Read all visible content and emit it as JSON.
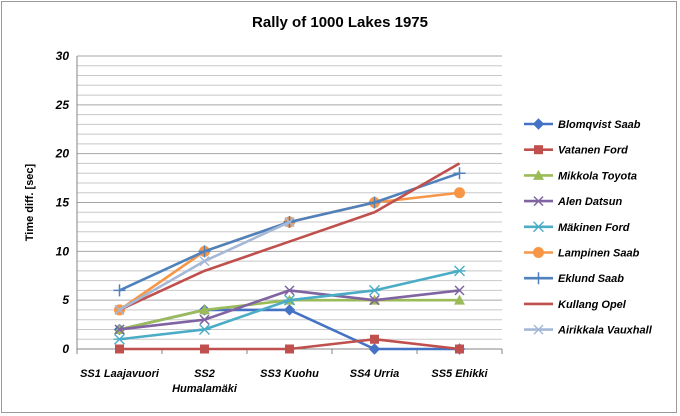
{
  "chart_data": {
    "type": "line",
    "title": "Rally of 1000 Lakes 1975",
    "xlabel": "",
    "ylabel": "Time diff. [sec]",
    "categories": [
      "SS1 Laajavuori",
      "SS2 Humalamäki",
      "SS3 Kuohu",
      "SS4 Urria",
      "SS5 Ehikki"
    ],
    "category_lines": [
      [
        "SS1 Laajavuori"
      ],
      [
        "SS2",
        "Humalamäki"
      ],
      [
        "SS3 Kuohu"
      ],
      [
        "SS4 Urria"
      ],
      [
        "SS5 Ehikki"
      ]
    ],
    "ylim": [
      0,
      30
    ],
    "yticks": [
      0,
      5,
      10,
      15,
      20,
      25,
      30
    ],
    "grid": true,
    "legend_position": "right",
    "series": [
      {
        "name": "Blomqvist Saab",
        "values": [
          2,
          4,
          4,
          0,
          0
        ],
        "color": "#4472c4",
        "marker": "diamond"
      },
      {
        "name": "Vatanen Ford",
        "values": [
          0,
          0,
          0,
          1,
          0
        ],
        "color": "#c0504d",
        "marker": "square"
      },
      {
        "name": "Mikkola Toyota",
        "values": [
          2,
          4,
          5,
          5,
          5
        ],
        "color": "#9bbb59",
        "marker": "triangle"
      },
      {
        "name": "Alen Datsun",
        "values": [
          2,
          3,
          6,
          5,
          6
        ],
        "color": "#8064a2",
        "marker": "x"
      },
      {
        "name": "Mäkinen Ford",
        "values": [
          1,
          2,
          5,
          6,
          8
        ],
        "color": "#4bacc6",
        "marker": "star"
      },
      {
        "name": "Lampinen Saab",
        "values": [
          4,
          10,
          13,
          15,
          16
        ],
        "color": "#f79646",
        "marker": "circle"
      },
      {
        "name": "Eklund Saab",
        "values": [
          6,
          10,
          13,
          15,
          18
        ],
        "color": "#4f81bd",
        "marker": "plus"
      },
      {
        "name": "Kullang Opel",
        "values": [
          4,
          8,
          11,
          14,
          19
        ],
        "color": "#c0504d",
        "marker": "none"
      },
      {
        "name": "Airikkala Vauxhall",
        "values": [
          4,
          9,
          13,
          null,
          null
        ],
        "color": "#a5b8d8",
        "marker": "x"
      }
    ]
  }
}
